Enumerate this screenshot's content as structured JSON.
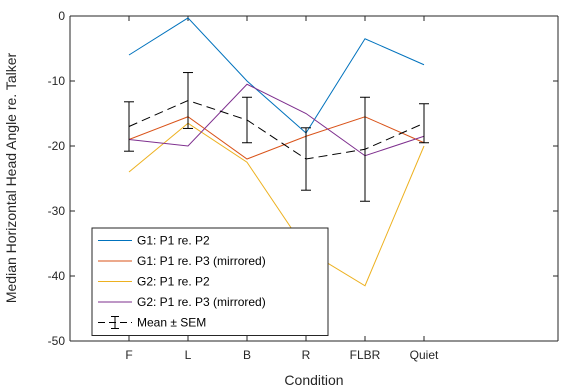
{
  "chart_data": {
    "type": "line",
    "xlabel": "Condition",
    "ylabel": "Median Horizontal Head Angle re. Talker",
    "categories": [
      "F",
      "L",
      "B",
      "R",
      "FLBR",
      "Quiet"
    ],
    "ylim": [
      -50,
      0
    ],
    "yticks": [
      0,
      -10,
      -20,
      -30,
      -40,
      -50
    ],
    "yticklabels": [
      "0",
      "-10",
      "-20",
      "-30",
      "-40",
      "-50"
    ],
    "grid": false,
    "legend_position": "bottom-left",
    "series": [
      {
        "name": "G1: P1 re. P2",
        "color": "#0072BD",
        "style": "solid",
        "values": [
          -6,
          -0.3,
          -10,
          -18,
          -3.5,
          -7.5
        ]
      },
      {
        "name": "G1: P1 re. P3 (mirrored)",
        "color": "#D95319",
        "style": "solid",
        "values": [
          -19,
          -15.5,
          -22,
          -18.5,
          -15.5,
          -19.5
        ]
      },
      {
        "name": "G2: P1 re. P2",
        "color": "#EDB120",
        "style": "solid",
        "values": [
          -24,
          -16.5,
          -22.5,
          -36,
          -41.5,
          -20
        ]
      },
      {
        "name": "G2: P1 re. P3 (mirrored)",
        "color": "#7E2F8E",
        "style": "solid",
        "values": [
          -19,
          -20,
          -10.5,
          -15,
          -21.5,
          -18.5
        ]
      },
      {
        "name": "Mean ± SEM",
        "color": "#000000",
        "style": "dashed",
        "values": [
          -17,
          -13,
          -16,
          -22,
          -20.5,
          -16.5
        ],
        "err": [
          3.8,
          4.3,
          3.5,
          4.8,
          8,
          3
        ]
      }
    ]
  }
}
